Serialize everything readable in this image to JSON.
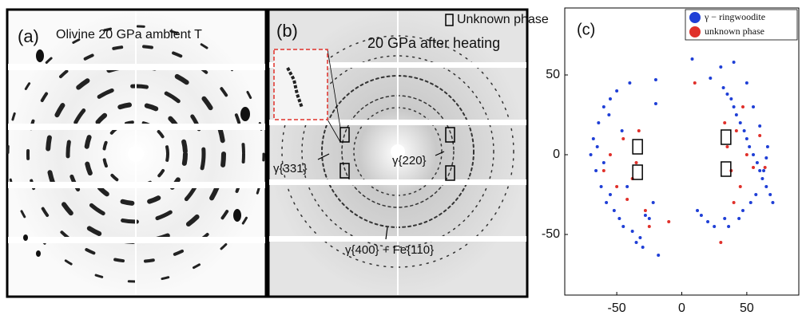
{
  "panel_a": {
    "label": "(a)",
    "caption": "Olivine 20 GPa ambient T"
  },
  "panel_b": {
    "label": "(b)",
    "legend": "Unknown phase",
    "caption": "20 GPa after heating",
    "annotations": [
      "γ{331}",
      "γ{220}",
      "γ{400} + Fe{110}"
    ]
  },
  "chart_data": {
    "type": "scatter",
    "label": "(c)",
    "xlim": [
      -90,
      90
    ],
    "ylim": [
      -88,
      92
    ],
    "xticks": [
      -50,
      0,
      50
    ],
    "yticks": [
      -50,
      0,
      50
    ],
    "legend": "upper right",
    "series": [
      {
        "name": "γ − ringwoodite",
        "color": "#1f3fd6",
        "x": [
          32,
          35,
          38,
          40,
          42,
          45,
          48,
          50,
          52,
          55,
          58,
          60,
          62,
          65,
          68,
          70,
          33,
          36,
          44,
          47,
          53,
          57,
          63,
          66,
          30,
          40,
          50,
          55,
          60,
          65,
          8,
          12,
          15,
          20,
          25,
          22,
          -70,
          -68,
          -66,
          -64,
          -62,
          -60,
          -58,
          -55,
          -52,
          -50,
          -48,
          -45,
          -40,
          -38,
          -35,
          -30,
          -25,
          -22,
          -20,
          -28,
          -32,
          -42,
          -46,
          -56,
          -60,
          -65,
          -18,
          -20,
          -55
        ],
        "values": [
          42,
          38,
          35,
          30,
          25,
          20,
          15,
          10,
          5,
          0,
          -5,
          -10,
          -15,
          -20,
          -25,
          -30,
          -40,
          -45,
          -40,
          -35,
          -30,
          -25,
          -10,
          5,
          55,
          58,
          45,
          30,
          18,
          -2,
          60,
          -35,
          -38,
          -42,
          -45,
          48,
          0,
          10,
          -10,
          20,
          -20,
          30,
          -30,
          35,
          -35,
          40,
          -40,
          -45,
          45,
          -48,
          -55,
          -58,
          -40,
          -30,
          47,
          -38,
          -52,
          -20,
          15,
          25,
          -5,
          5,
          -63,
          32,
          -25
        ]
      },
      {
        "name": "unknown phase",
        "color": "#e0302a",
        "x": [
          35,
          38,
          33,
          42,
          45,
          50,
          55,
          60,
          40,
          47,
          -35,
          -33,
          -38,
          -45,
          -50,
          -55,
          -42,
          -28,
          -25,
          -60,
          10,
          -10,
          30,
          64
        ],
        "values": [
          5,
          -10,
          20,
          15,
          -20,
          0,
          -8,
          12,
          -30,
          30,
          -5,
          15,
          -15,
          10,
          -20,
          0,
          -28,
          -35,
          -45,
          -10,
          45,
          -42,
          -55,
          -8
        ]
      }
    ]
  }
}
